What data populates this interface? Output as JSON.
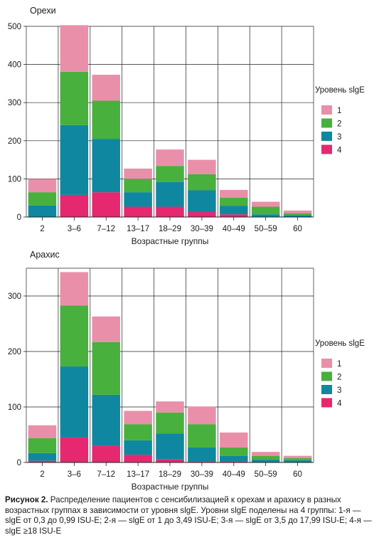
{
  "legend": {
    "title": "Уровень slgE",
    "items": [
      {
        "label": "1",
        "color": "#ea8fa9"
      },
      {
        "label": "2",
        "color": "#48b03d"
      },
      {
        "label": "3",
        "color": "#0f87a1"
      },
      {
        "label": "4",
        "color": "#e5286f"
      }
    ]
  },
  "caption": {
    "bold": "Рисунок 2.",
    "text": " Распределение пациентов с сенсибилизацией к орехам и арахису в разных возрастных группах в зависимости от уровня slgE. Уровни slgE поделены на 4 группы: 1-я — slgE от 0,3 до 0,99 ISU-E; 2-я — slgE от 1 до 3,49 ISU-E; 3-я — slgE от 3,5 до 17,99 ISU-E; 4-я — slgE ≥18 ISU-E"
  },
  "chart_data": [
    {
      "type": "bar",
      "stacked": true,
      "title": "Орехи",
      "xlabel": "Возрастные группы",
      "ylabel": "",
      "categories": [
        "2",
        "3–6",
        "7–12",
        "13–17",
        "18–29",
        "30–39",
        "40–49",
        "50–59",
        "60"
      ],
      "ylim": [
        0,
        500
      ],
      "yticks": [
        0,
        100,
        200,
        300,
        400,
        500
      ],
      "grid": true,
      "legend_position": "right",
      "series": [
        {
          "name": "4",
          "values": [
            0,
            58,
            65,
            27,
            27,
            13,
            7,
            0,
            0
          ]
        },
        {
          "name": "3",
          "values": [
            30,
            183,
            140,
            38,
            65,
            57,
            22,
            7,
            5
          ]
        },
        {
          "name": "2",
          "values": [
            35,
            140,
            100,
            35,
            42,
            42,
            22,
            20,
            5
          ]
        },
        {
          "name": "1",
          "values": [
            35,
            122,
            68,
            27,
            43,
            38,
            20,
            13,
            7
          ]
        }
      ]
    },
    {
      "type": "bar",
      "stacked": true,
      "title": "Арахис",
      "xlabel": "Возрастные группы",
      "ylabel": "",
      "categories": [
        "2",
        "3–6",
        "7–12",
        "13–17",
        "18–29",
        "30–39",
        "40–49",
        "50–59",
        "60"
      ],
      "ylim": [
        0,
        350
      ],
      "yticks": [
        0,
        100,
        200,
        300
      ],
      "grid": true,
      "legend_position": "right",
      "series": [
        {
          "name": "4",
          "values": [
            3,
            45,
            30,
            14,
            6,
            2,
            2,
            0,
            0
          ]
        },
        {
          "name": "3",
          "values": [
            14,
            128,
            92,
            26,
            46,
            25,
            10,
            5,
            4
          ]
        },
        {
          "name": "2",
          "values": [
            27,
            110,
            95,
            29,
            38,
            42,
            15,
            7,
            4
          ]
        },
        {
          "name": "1",
          "values": [
            23,
            60,
            46,
            24,
            20,
            32,
            27,
            7,
            4
          ]
        }
      ]
    }
  ]
}
